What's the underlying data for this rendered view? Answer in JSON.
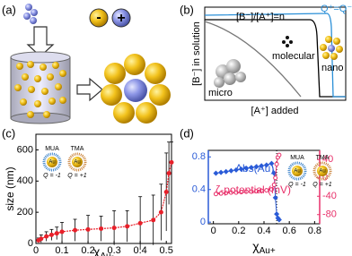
{
  "panel_labels": [
    "(a)",
    "(b)",
    "(c)",
    "(d)"
  ],
  "panel_a": {
    "minus": "-",
    "plus": "+"
  },
  "panel_b": {
    "ratio": "[B⁻]/[A⁺]=n",
    "neutral": "Q⁺=Q⁻",
    "molecular": "molecular",
    "nano": "nano",
    "micro": "micro",
    "ylabel": "[B⁻] in solution",
    "xlabel": "[A⁺] added"
  },
  "chart_data": [
    {
      "type": "errorbar",
      "ylabel": "size (nm)",
      "xlabel": {
        "symbol": "χ",
        "subscript": "Au-"
      },
      "x": [
        0.01,
        0.02,
        0.04,
        0.06,
        0.08,
        0.1,
        0.15,
        0.2,
        0.25,
        0.3,
        0.35,
        0.4,
        0.45,
        0.48,
        0.5,
        0.51,
        0.52
      ],
      "values": [
        20,
        30,
        45,
        55,
        65,
        75,
        85,
        90,
        95,
        100,
        110,
        130,
        150,
        200,
        330,
        450,
        520
      ],
      "errors": [
        15,
        25,
        30,
        35,
        40,
        60,
        70,
        90,
        80,
        110,
        100,
        170,
        160,
        180,
        250,
        200,
        130
      ],
      "color": "#e8202a",
      "xlim": [
        0,
        0.52
      ],
      "ylim": [
        0,
        700
      ],
      "xticks": [
        0,
        0.1,
        0.2,
        0.3,
        0.4,
        0.5
      ],
      "yticks": [
        0,
        200,
        400,
        600
      ],
      "insets": [
        {
          "ligand": "MUA",
          "core": "Au",
          "charge": "Q = -1"
        },
        {
          "ligand": "TMA",
          "core": "Au",
          "charge": "Q = +1"
        }
      ]
    },
    {
      "type": "dual-line",
      "xlabel": {
        "symbol": "χ",
        "subscript": "Au+"
      },
      "x": [
        0.02,
        0.06,
        0.1,
        0.14,
        0.18,
        0.22,
        0.26,
        0.3,
        0.34,
        0.38,
        0.42,
        0.46,
        0.48,
        0.49,
        0.5,
        0.51,
        0.52
      ],
      "series": [
        {
          "name": "Abs(Au)",
          "color": "#2a5bd7",
          "values": [
            0.6,
            0.61,
            0.62,
            0.63,
            0.64,
            0.65,
            0.66,
            0.67,
            0.68,
            0.69,
            0.7,
            0.72,
            0.6,
            0.3,
            0.1,
            0.05,
            0.03
          ]
        },
        {
          "name": "ζ-potential (mV)",
          "color": "#e8306a",
          "axis": "y2",
          "values": [
            -35,
            -34,
            -33,
            -32,
            -32,
            -31,
            -30,
            -30,
            -29,
            -28,
            -27,
            -25,
            -15,
            0,
            30,
            45,
            50
          ]
        }
      ],
      "xlim": [
        -0.04,
        0.84
      ],
      "ylim": [
        -0.02,
        0.88
      ],
      "y2lim": [
        -100,
        60
      ],
      "xticks": [
        0,
        0.2,
        0.4,
        0.6,
        0.8
      ],
      "yticks": [
        0,
        0.4,
        0.8
      ],
      "y2ticks": [
        40,
        0,
        -40,
        -80
      ],
      "vline_x": 0.5,
      "insets": [
        {
          "ligand": "MUA",
          "core": "Au",
          "charge": "Q = -1"
        },
        {
          "ligand": "TMA",
          "core": "Au",
          "charge": "Q = +1"
        }
      ]
    }
  ]
}
